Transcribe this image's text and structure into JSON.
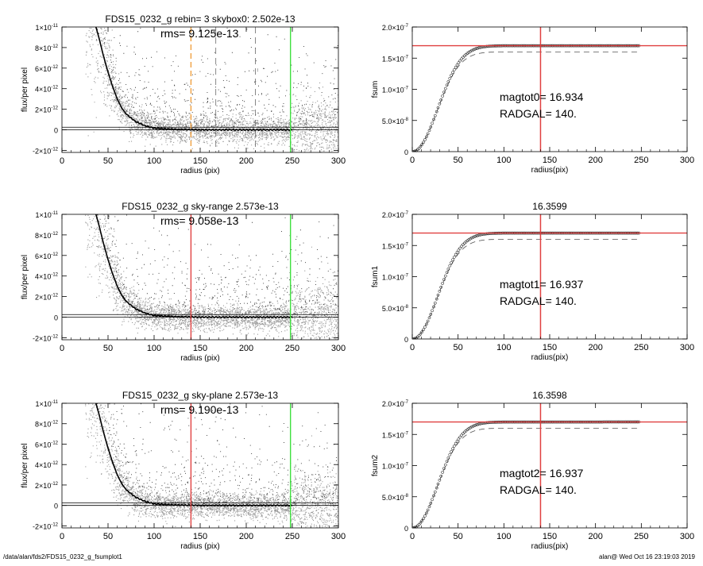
{
  "footer": {
    "path": "/data/alan/fds2/FDS15_0232_g_fsumplot1",
    "stamp": "alan@  Wed Oct 16 23:19:03 2019"
  },
  "colors": {
    "scatter_light": "#9a9a9a",
    "scatter_dark": "#222222",
    "profile": "#000000",
    "orange_line": "#f0a040",
    "red_line": "#e04040",
    "green_line": "#40e040",
    "dashed": "#555555"
  },
  "chart_data": [
    {
      "id": "profile-1",
      "type": "scatter",
      "title": "FDS15_0232_g rebin= 3    skybox0:  2.502e-13",
      "annotation": "rms= 9.125e-13",
      "xlabel": "radius (pix)",
      "ylabel": "flux/per pixel",
      "xlim": [
        0,
        300
      ],
      "ylim": [
        -2.2e-12,
        1e-11
      ],
      "xticks": [
        "0",
        "50",
        "100",
        "150",
        "200",
        "250",
        "300"
      ],
      "yticks": [
        {
          "v": -2e-12,
          "m": "-2",
          "e": "-12"
        },
        {
          "v": 0,
          "m": "0",
          "e": ""
        },
        {
          "v": 2e-12,
          "m": "2",
          "e": "-12"
        },
        {
          "v": 4e-12,
          "m": "4",
          "e": "-12"
        },
        {
          "v": 6e-12,
          "m": "6",
          "e": "-12"
        },
        {
          "v": 8e-12,
          "m": "8",
          "e": "-12"
        },
        {
          "v": 1e-11,
          "m": "1",
          "e": "-11"
        }
      ],
      "vlines": [
        {
          "x": 140,
          "color": "orange",
          "style": "dashed"
        },
        {
          "x": 167,
          "color": "gray",
          "style": "dashed"
        },
        {
          "x": 210,
          "color": "gray",
          "style": "dashed"
        },
        {
          "x": 248,
          "color": "green",
          "style": "solid"
        }
      ],
      "hlines": [
        0,
        2.5e-13
      ],
      "profile": [
        [
          30,
          1.2e-11
        ],
        [
          35,
          1.06e-11
        ],
        [
          40,
          9e-12
        ],
        [
          45,
          7.2e-12
        ],
        [
          50,
          5.6e-12
        ],
        [
          55,
          4.2e-12
        ],
        [
          60,
          3e-12
        ],
        [
          65,
          2.1e-12
        ],
        [
          70,
          1.5e-12
        ],
        [
          80,
          8e-13
        ],
        [
          90,
          4e-13
        ],
        [
          100,
          1.5e-13
        ],
        [
          120,
          5e-14
        ],
        [
          150,
          0
        ],
        [
          200,
          0
        ],
        [
          250,
          0
        ]
      ]
    },
    {
      "id": "growth-1",
      "type": "scatter",
      "title": "",
      "annotations": [
        "magtot0=  16.934",
        "RADGAL=    140."
      ],
      "xlabel": "radius(pix)",
      "ylabel": "fsum",
      "xlim": [
        0,
        300
      ],
      "ylim": [
        0,
        2e-07
      ],
      "xticks": [
        "0",
        "50",
        "100",
        "150",
        "200",
        "250",
        "300"
      ],
      "yticks": [
        {
          "v": 0,
          "m": "0",
          "e": ""
        },
        {
          "v": 5e-08,
          "m": "5.0",
          "e": "-8"
        },
        {
          "v": 1e-07,
          "m": "1.0",
          "e": "-7"
        },
        {
          "v": 1.5e-07,
          "m": "1.5",
          "e": "-7"
        },
        {
          "v": 2e-07,
          "m": "2.0",
          "e": "-7"
        }
      ],
      "hline": 1.7e-07,
      "vline": 140,
      "asymptote": 1.7e-07,
      "dashed_asymptote": 1.6e-07,
      "x_end": 248
    },
    {
      "id": "profile-2",
      "type": "scatter",
      "title": "FDS15_0232_g sky-range  2.573e-13",
      "annotation": "rms= 9.058e-13",
      "xlabel": "radius (pix)",
      "ylabel": "flux/per pixel",
      "xlim": [
        0,
        300
      ],
      "ylim": [
        -2.2e-12,
        1e-11
      ],
      "xticks": [
        "0",
        "50",
        "100",
        "150",
        "200",
        "250",
        "300"
      ],
      "yticks": [
        {
          "v": -2e-12,
          "m": "-2",
          "e": "-12"
        },
        {
          "v": 0,
          "m": "0",
          "e": ""
        },
        {
          "v": 2e-12,
          "m": "2",
          "e": "-12"
        },
        {
          "v": 4e-12,
          "m": "4",
          "e": "-12"
        },
        {
          "v": 6e-12,
          "m": "6",
          "e": "-12"
        },
        {
          "v": 8e-12,
          "m": "8",
          "e": "-12"
        },
        {
          "v": 1e-11,
          "m": "1",
          "e": "-11"
        }
      ],
      "vlines": [
        {
          "x": 140,
          "color": "red",
          "style": "solid"
        },
        {
          "x": 248,
          "color": "green",
          "style": "solid"
        }
      ],
      "hlines": [
        0,
        2.5e-13
      ],
      "profile": [
        [
          30,
          1.2e-11
        ],
        [
          35,
          1.06e-11
        ],
        [
          40,
          9e-12
        ],
        [
          45,
          7.2e-12
        ],
        [
          50,
          5.6e-12
        ],
        [
          55,
          4.2e-12
        ],
        [
          60,
          3e-12
        ],
        [
          65,
          2.1e-12
        ],
        [
          70,
          1.5e-12
        ],
        [
          80,
          8e-13
        ],
        [
          90,
          4e-13
        ],
        [
          100,
          1.5e-13
        ],
        [
          120,
          5e-14
        ],
        [
          150,
          0
        ],
        [
          200,
          0
        ],
        [
          250,
          0
        ]
      ]
    },
    {
      "id": "growth-2",
      "type": "scatter",
      "title": "16.3599",
      "annotations": [
        "magtot1=  16.937",
        "RADGAL=    140."
      ],
      "xlabel": "radius(pix)",
      "ylabel": "fsum1",
      "xlim": [
        0,
        300
      ],
      "ylim": [
        0,
        2e-07
      ],
      "xticks": [
        "0",
        "50",
        "100",
        "150",
        "200",
        "250",
        "300"
      ],
      "yticks": [
        {
          "v": 0,
          "m": "0",
          "e": ""
        },
        {
          "v": 5e-08,
          "m": "5.0",
          "e": "-8"
        },
        {
          "v": 1e-07,
          "m": "1.0",
          "e": "-7"
        },
        {
          "v": 1.5e-07,
          "m": "1.5",
          "e": "-7"
        },
        {
          "v": 2e-07,
          "m": "2.0",
          "e": "-7"
        }
      ],
      "hline": 1.7e-07,
      "vline": 140,
      "asymptote": 1.7e-07,
      "dashed_asymptote": 1.6e-07,
      "x_end": 248
    },
    {
      "id": "profile-3",
      "type": "scatter",
      "title": "FDS15_0232_g sky-plane  2.573e-13",
      "annotation": "rms= 9.190e-13",
      "xlabel": "radius (pix)",
      "ylabel": "flux/per pixel",
      "xlim": [
        0,
        300
      ],
      "ylim": [
        -2.2e-12,
        1e-11
      ],
      "xticks": [
        "0",
        "50",
        "100",
        "150",
        "200",
        "250",
        "300"
      ],
      "yticks": [
        {
          "v": -2e-12,
          "m": "-2",
          "e": "-12"
        },
        {
          "v": 0,
          "m": "0",
          "e": ""
        },
        {
          "v": 2e-12,
          "m": "2",
          "e": "-12"
        },
        {
          "v": 4e-12,
          "m": "4",
          "e": "-12"
        },
        {
          "v": 6e-12,
          "m": "6",
          "e": "-12"
        },
        {
          "v": 8e-12,
          "m": "8",
          "e": "-12"
        },
        {
          "v": 1e-11,
          "m": "1",
          "e": "-11"
        }
      ],
      "vlines": [
        {
          "x": 140,
          "color": "red",
          "style": "solid"
        },
        {
          "x": 248,
          "color": "green",
          "style": "solid"
        }
      ],
      "hlines": [
        0,
        2.5e-13
      ],
      "profile": [
        [
          30,
          1.2e-11
        ],
        [
          35,
          1.06e-11
        ],
        [
          40,
          9e-12
        ],
        [
          45,
          7.2e-12
        ],
        [
          50,
          5.6e-12
        ],
        [
          55,
          4.2e-12
        ],
        [
          60,
          3e-12
        ],
        [
          65,
          2.1e-12
        ],
        [
          70,
          1.5e-12
        ],
        [
          80,
          8e-13
        ],
        [
          90,
          4e-13
        ],
        [
          100,
          1.5e-13
        ],
        [
          120,
          5e-14
        ],
        [
          150,
          0
        ],
        [
          200,
          0
        ],
        [
          250,
          0
        ]
      ]
    },
    {
      "id": "growth-3",
      "type": "scatter",
      "title": "16.3598",
      "annotations": [
        "magtot2=  16.937",
        "RADGAL=    140."
      ],
      "xlabel": "radius(pix)",
      "ylabel": "fsum2",
      "xlim": [
        0,
        300
      ],
      "ylim": [
        0,
        2e-07
      ],
      "xticks": [
        "0",
        "50",
        "100",
        "150",
        "200",
        "250",
        "300"
      ],
      "yticks": [
        {
          "v": 0,
          "m": "0",
          "e": ""
        },
        {
          "v": 5e-08,
          "m": "5.0",
          "e": "-8"
        },
        {
          "v": 1e-07,
          "m": "1.0",
          "e": "-7"
        },
        {
          "v": 1.5e-07,
          "m": "1.5",
          "e": "-7"
        },
        {
          "v": 2e-07,
          "m": "2.0",
          "e": "-7"
        }
      ],
      "hline": 1.7e-07,
      "vline": 140,
      "asymptote": 1.7e-07,
      "dashed_asymptote": 1.6e-07,
      "x_end": 248
    }
  ]
}
